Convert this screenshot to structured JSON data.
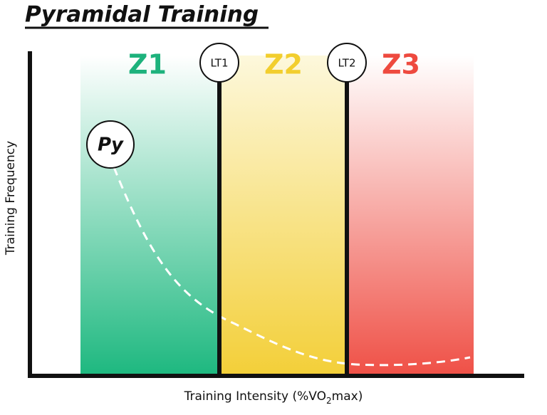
{
  "title": "Pyramidal Training",
  "zones": [
    {
      "label": "Z1"
    },
    {
      "label": "Z2"
    },
    {
      "label": "Z3"
    }
  ],
  "thresholds": [
    {
      "label": "LT1"
    },
    {
      "label": "LT2"
    }
  ],
  "curve": {
    "label": "Py"
  },
  "axes": {
    "y_label": "Training Frequency",
    "x_label": [
      "Training Intensity (%VO",
      "2",
      "max)"
    ]
  }
}
